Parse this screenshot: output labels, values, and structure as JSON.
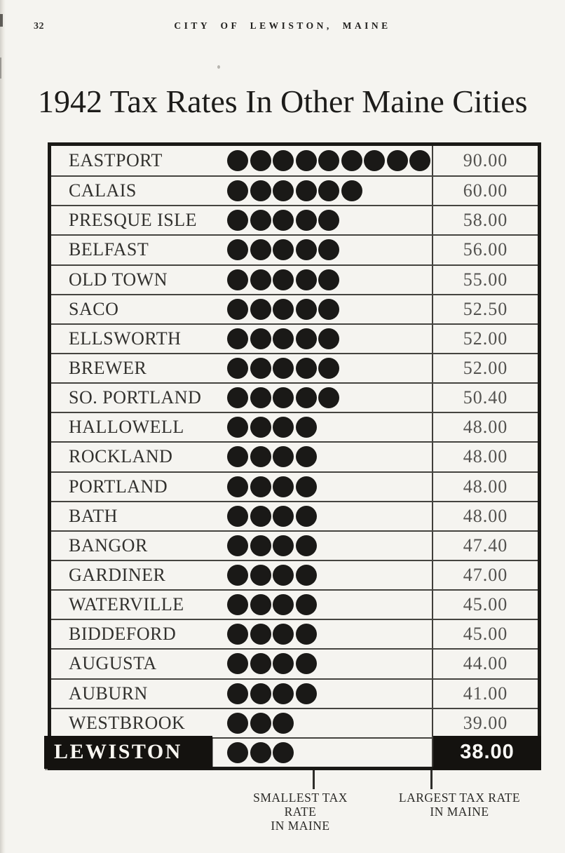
{
  "page": {
    "number": "32",
    "running_header": "CITY OF LEWISTON, MAINE",
    "title": "1942 Tax Rates In Other Maine Cities"
  },
  "chart_data": {
    "type": "bar",
    "variant": "pictograph",
    "title": "1942 Tax Rates In Other Maine Cities",
    "symbol": "filled-circle",
    "unit_per_symbol": 10,
    "categories": [
      "EASTPORT",
      "CALAIS",
      "PRESQUE ISLE",
      "BELFAST",
      "OLD TOWN",
      "SACO",
      "ELLSWORTH",
      "BREWER",
      "SO. PORTLAND",
      "HALLOWELL",
      "ROCKLAND",
      "PORTLAND",
      "BATH",
      "BANGOR",
      "GARDINER",
      "WATERVILLE",
      "BIDDEFORD",
      "AUGUSTA",
      "AUBURN",
      "WESTBROOK",
      "LEWISTON"
    ],
    "values": [
      90,
      60,
      58,
      56,
      55,
      52.5,
      52,
      52,
      50.4,
      48,
      48,
      48,
      48,
      47.4,
      47,
      45,
      45,
      44,
      41,
      39,
      38
    ],
    "value_labels": [
      "90.00",
      "60.00",
      "58.00",
      "56.00",
      "55.00",
      "52.50",
      "52.00",
      "52.00",
      "50.40",
      "48.00",
      "48.00",
      "48.00",
      "48.00",
      "47.40",
      "47.00",
      "45.00",
      "45.00",
      "44.00",
      "41.00",
      "39.00",
      "38.00"
    ],
    "highlight_category": "LEWISTON",
    "highlight_value_label": "38.00",
    "callouts": {
      "smallest": {
        "line1": "SMALLEST TAX RATE",
        "line2": "IN MAINE"
      },
      "largest": {
        "line1": "LARGEST TAX RATE",
        "line2": "IN MAINE"
      }
    },
    "legend_position": "none",
    "grid": "row-rules"
  },
  "colors": {
    "paper": "#f5f4f0",
    "ink": "#1a1916",
    "value_ink": "#53524f",
    "highlight_bg": "#14120f",
    "highlight_text": "#f8f6f1"
  }
}
